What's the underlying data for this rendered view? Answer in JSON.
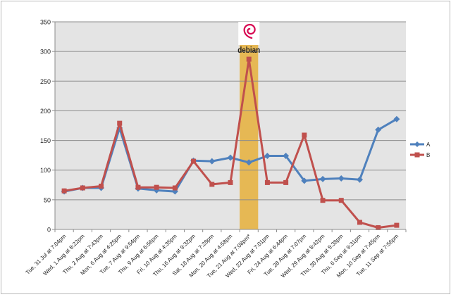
{
  "chart_data": {
    "type": "line",
    "title": "",
    "xlabel": "",
    "ylabel": "",
    "ylim": [
      0,
      350
    ],
    "yticks": [
      0,
      50,
      100,
      150,
      200,
      250,
      300,
      350
    ],
    "grid": true,
    "legend": "right",
    "categories": [
      "Tue, 31 Jul at 7:04pm",
      "Wed, 1 Aug at 8:22pm",
      "Thu, 2 Aug at 7:43pm",
      "Mon, 6 Aug at 4:25pm",
      "Tue, 7 Aug at 9:54pm",
      "Thu, 9 Aug at 6:56pm",
      "Fri, 10 Aug at 4:35pm",
      "Thu, 16 Aug at 9:32pm",
      "Sat, 18 Aug at 7:28pm",
      "Mon, 20 Aug at 4:58pm",
      "Tue, 21 Aug at 7:08pm*",
      "Wed, 22 Aug at 7:01pm",
      "Fri, 24 Aug at 6:44pm",
      "Tue, 28 Aug at 7:07pm",
      "Wed, 29 Aug at 8:42pm",
      "Thu, 30 Aug at 5:38pm",
      "Thu, 6 Sep at 9:31pm",
      "Mon, 10 Sep at 7:45pm",
      "Tue, 11 Sep at 7:56pm"
    ],
    "series": [
      {
        "name": "A",
        "color": "#4f81bd",
        "marker": "diamond",
        "values": [
          64,
          70,
          70,
          171,
          69,
          66,
          64,
          116,
          115,
          121,
          113,
          124,
          124,
          82,
          85,
          86,
          84,
          168,
          186
        ]
      },
      {
        "name": "B",
        "color": "#c0504d",
        "marker": "square",
        "values": [
          65,
          70,
          73,
          179,
          71,
          71,
          70,
          115,
          76,
          79,
          287,
          79,
          79,
          159,
          49,
          49,
          12,
          3,
          7
        ]
      }
    ],
    "highlight": {
      "category_index": 10,
      "color": "#e6b854",
      "label": "debian",
      "logo": "debian-swirl-logo"
    },
    "plot_area_color": "#e4e4e4",
    "gridline_color": "#8c8c8c"
  }
}
